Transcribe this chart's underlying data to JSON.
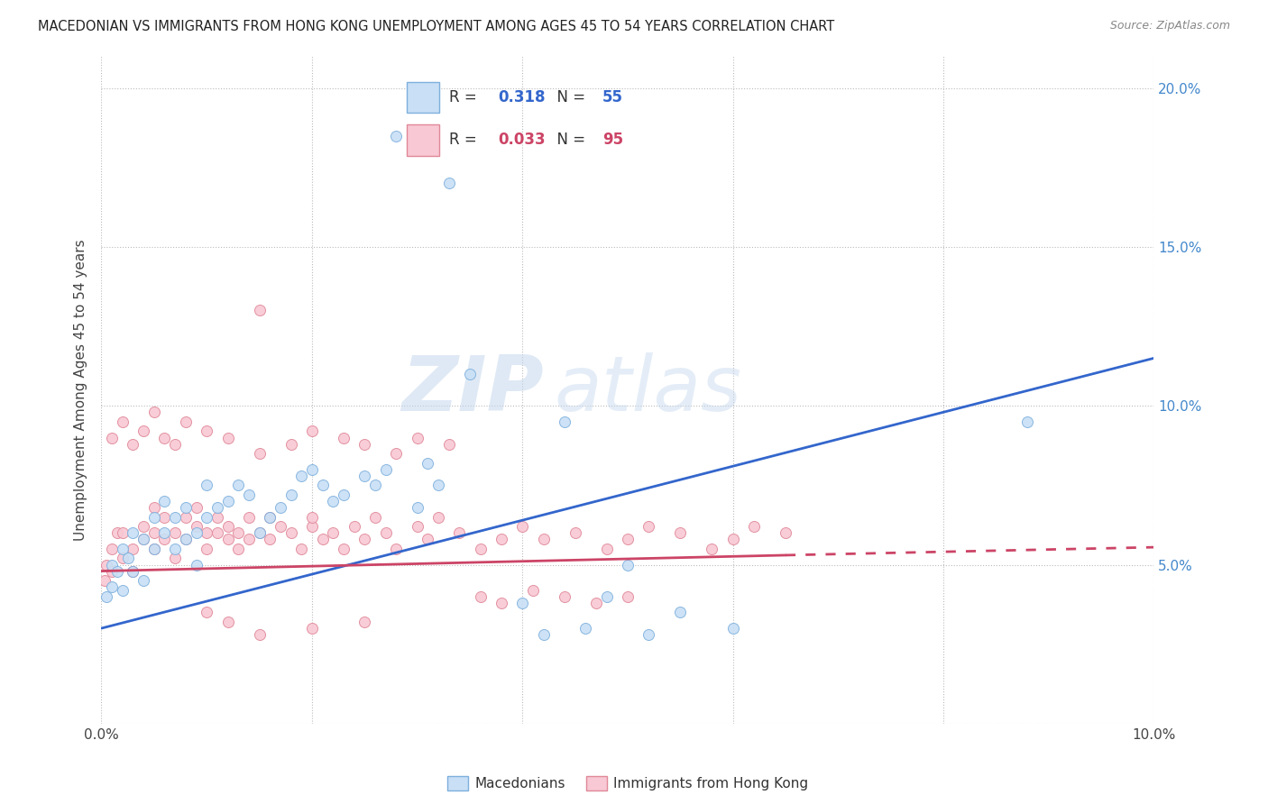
{
  "title": "MACEDONIAN VS IMMIGRANTS FROM HONG KONG UNEMPLOYMENT AMONG AGES 45 TO 54 YEARS CORRELATION CHART",
  "source": "Source: ZipAtlas.com",
  "ylabel": "Unemployment Among Ages 45 to 54 years",
  "xlim": [
    0.0,
    0.1
  ],
  "ylim": [
    0.0,
    0.21
  ],
  "background_color": "#ffffff",
  "grid_color": "#cccccc",
  "watermark_zip": "ZIP",
  "watermark_atlas": "atlas",
  "macedonians": {
    "color": "#c8dff5",
    "edge_color": "#7eb0dd",
    "R": 0.318,
    "N": 55,
    "line_color": "#3366cc",
    "label": "Macedonians"
  },
  "hk_immigrants": {
    "color": "#f8c8d4",
    "edge_color": "#e08898",
    "R": 0.033,
    "N": 95,
    "line_color": "#cc4466",
    "label": "Immigrants from Hong Kong"
  },
  "mac_x": [
    0.0005,
    0.001,
    0.001,
    0.0015,
    0.002,
    0.002,
    0.0025,
    0.003,
    0.003,
    0.004,
    0.004,
    0.005,
    0.005,
    0.006,
    0.006,
    0.007,
    0.007,
    0.008,
    0.008,
    0.009,
    0.009,
    0.01,
    0.01,
    0.011,
    0.012,
    0.013,
    0.014,
    0.015,
    0.016,
    0.017,
    0.018,
    0.019,
    0.02,
    0.021,
    0.022,
    0.023,
    0.025,
    0.026,
    0.027,
    0.028,
    0.03,
    0.031,
    0.032,
    0.033,
    0.035,
    0.04,
    0.042,
    0.044,
    0.046,
    0.048,
    0.05,
    0.052,
    0.055,
    0.06,
    0.088
  ],
  "mac_y": [
    0.04,
    0.05,
    0.043,
    0.048,
    0.055,
    0.042,
    0.052,
    0.048,
    0.06,
    0.058,
    0.045,
    0.055,
    0.065,
    0.06,
    0.07,
    0.055,
    0.065,
    0.058,
    0.068,
    0.05,
    0.06,
    0.065,
    0.075,
    0.068,
    0.07,
    0.075,
    0.072,
    0.06,
    0.065,
    0.068,
    0.072,
    0.078,
    0.08,
    0.075,
    0.07,
    0.072,
    0.078,
    0.075,
    0.08,
    0.185,
    0.068,
    0.082,
    0.075,
    0.17,
    0.11,
    0.038,
    0.028,
    0.095,
    0.03,
    0.04,
    0.05,
    0.028,
    0.035,
    0.03,
    0.095
  ],
  "hk_x": [
    0.0003,
    0.0005,
    0.001,
    0.001,
    0.0015,
    0.002,
    0.002,
    0.003,
    0.003,
    0.004,
    0.004,
    0.005,
    0.005,
    0.005,
    0.006,
    0.006,
    0.007,
    0.007,
    0.008,
    0.008,
    0.009,
    0.009,
    0.01,
    0.01,
    0.011,
    0.011,
    0.012,
    0.012,
    0.013,
    0.013,
    0.014,
    0.014,
    0.015,
    0.015,
    0.016,
    0.016,
    0.017,
    0.018,
    0.019,
    0.02,
    0.02,
    0.021,
    0.022,
    0.023,
    0.024,
    0.025,
    0.026,
    0.027,
    0.028,
    0.03,
    0.031,
    0.032,
    0.034,
    0.036,
    0.038,
    0.04,
    0.042,
    0.045,
    0.048,
    0.05,
    0.052,
    0.055,
    0.058,
    0.06,
    0.062,
    0.065,
    0.001,
    0.002,
    0.003,
    0.004,
    0.005,
    0.006,
    0.007,
    0.008,
    0.01,
    0.012,
    0.015,
    0.018,
    0.02,
    0.023,
    0.025,
    0.028,
    0.03,
    0.033,
    0.036,
    0.038,
    0.041,
    0.044,
    0.047,
    0.05,
    0.01,
    0.012,
    0.015,
    0.02,
    0.025
  ],
  "hk_y": [
    0.045,
    0.05,
    0.048,
    0.055,
    0.06,
    0.052,
    0.06,
    0.055,
    0.048,
    0.062,
    0.058,
    0.06,
    0.068,
    0.055,
    0.065,
    0.058,
    0.06,
    0.052,
    0.065,
    0.058,
    0.062,
    0.068,
    0.06,
    0.055,
    0.06,
    0.065,
    0.058,
    0.062,
    0.055,
    0.06,
    0.065,
    0.058,
    0.13,
    0.06,
    0.065,
    0.058,
    0.062,
    0.06,
    0.055,
    0.062,
    0.065,
    0.058,
    0.06,
    0.055,
    0.062,
    0.058,
    0.065,
    0.06,
    0.055,
    0.062,
    0.058,
    0.065,
    0.06,
    0.055,
    0.058,
    0.062,
    0.058,
    0.06,
    0.055,
    0.058,
    0.062,
    0.06,
    0.055,
    0.058,
    0.062,
    0.06,
    0.09,
    0.095,
    0.088,
    0.092,
    0.098,
    0.09,
    0.088,
    0.095,
    0.092,
    0.09,
    0.085,
    0.088,
    0.092,
    0.09,
    0.088,
    0.085,
    0.09,
    0.088,
    0.04,
    0.038,
    0.042,
    0.04,
    0.038,
    0.04,
    0.035,
    0.032,
    0.028,
    0.03,
    0.032
  ]
}
